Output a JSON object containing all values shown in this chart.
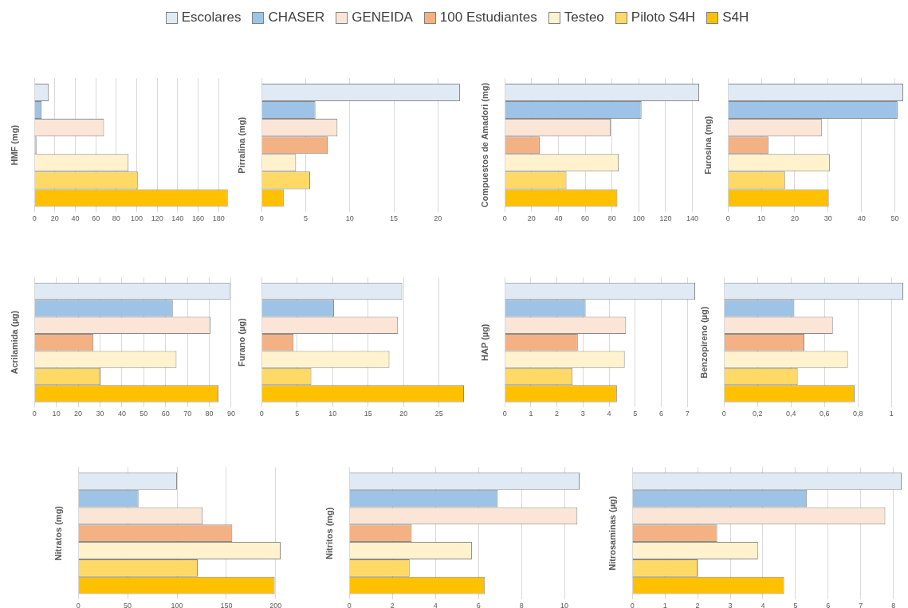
{
  "chart_data": [
    {
      "type": "bar",
      "orientation": "horizontal",
      "ylabel": "HMF (mg)",
      "categories": [
        null
      ],
      "xlim": [
        0,
        190
      ],
      "xticks": [
        0,
        20,
        40,
        60,
        80,
        100,
        120,
        140,
        160,
        180
      ],
      "grid": "x",
      "legend": "top",
      "series": [
        {
          "name": "Escolares",
          "color": "#dfeaf5",
          "values": [
            14
          ]
        },
        {
          "name": "CHASER",
          "color": "#9dc3e6",
          "values": [
            7
          ]
        },
        {
          "name": "GENEIDA",
          "color": "#fbe5d6",
          "values": [
            68
          ]
        },
        {
          "name": "100 Estudiantes",
          "color": "#f4b183",
          "values": [
            2
          ]
        },
        {
          "name": "Testeo",
          "color": "#fff2cc",
          "values": [
            92
          ]
        },
        {
          "name": "Piloto S4H",
          "color": "#ffd966",
          "values": [
            101
          ]
        },
        {
          "name": "S4H",
          "color": "#ffc000",
          "values": [
            189
          ]
        }
      ]
    },
    {
      "type": "bar",
      "orientation": "horizontal",
      "ylabel": "Pirralina (mg)",
      "categories": [
        null
      ],
      "xlim": [
        0,
        22.5
      ],
      "xticks": [
        0,
        5,
        10,
        15,
        20
      ],
      "grid": "x",
      "series": [
        {
          "color": "#dfeaf5",
          "values": [
            22.5
          ]
        },
        {
          "color": "#9dc3e6",
          "values": [
            6.1
          ]
        },
        {
          "color": "#fbe5d6",
          "values": [
            8.6
          ]
        },
        {
          "color": "#f4b183",
          "values": [
            7.5
          ]
        },
        {
          "color": "#fff2cc",
          "values": [
            3.9
          ]
        },
        {
          "color": "#ffd966",
          "values": [
            5.5
          ]
        },
        {
          "color": "#ffc000",
          "values": [
            2.5
          ]
        }
      ]
    },
    {
      "type": "bar",
      "orientation": "horizontal",
      "ylabel": "Compuestos de Amadori (mg)",
      "categories": [
        null
      ],
      "xlim": [
        0,
        145
      ],
      "xticks": [
        0,
        20,
        40,
        60,
        80,
        100,
        120,
        140
      ],
      "grid": "x",
      "series": [
        {
          "color": "#dfeaf5",
          "values": [
            145
          ]
        },
        {
          "color": "#9dc3e6",
          "values": [
            102
          ]
        },
        {
          "color": "#fbe5d6",
          "values": [
            79
          ]
        },
        {
          "color": "#f4b183",
          "values": [
            26
          ]
        },
        {
          "color": "#fff2cc",
          "values": [
            85
          ]
        },
        {
          "color": "#ffd966",
          "values": [
            46
          ]
        },
        {
          "color": "#ffc000",
          "values": [
            84
          ]
        }
      ]
    },
    {
      "type": "bar",
      "orientation": "horizontal",
      "ylabel": "Furosina (mg)",
      "categories": [
        null
      ],
      "xlim": [
        0,
        52.5
      ],
      "xticks": [
        0,
        10,
        20,
        30,
        40,
        50
      ],
      "grid": "x",
      "series": [
        {
          "color": "#dfeaf5",
          "values": [
            52.5
          ]
        },
        {
          "color": "#9dc3e6",
          "values": [
            50.8
          ]
        },
        {
          "color": "#fbe5d6",
          "values": [
            28.1
          ]
        },
        {
          "color": "#f4b183",
          "values": [
            12.1
          ]
        },
        {
          "color": "#fff2cc",
          "values": [
            30.5
          ]
        },
        {
          "color": "#ffd966",
          "values": [
            17.1
          ]
        },
        {
          "color": "#ffc000",
          "values": [
            30.2
          ]
        }
      ]
    },
    {
      "type": "bar",
      "orientation": "horizontal",
      "ylabel": "Acrilamida (µg)",
      "categories": [
        null
      ],
      "xlim": [
        0,
        90
      ],
      "xticks": [
        0,
        10,
        20,
        30,
        40,
        50,
        60,
        70,
        80,
        90
      ],
      "grid": "x",
      "series": [
        {
          "color": "#dfeaf5",
          "values": [
            89.5
          ]
        },
        {
          "color": "#9dc3e6",
          "values": [
            63.3
          ]
        },
        {
          "color": "#fbe5d6",
          "values": [
            80.5
          ]
        },
        {
          "color": "#f4b183",
          "values": [
            27
          ]
        },
        {
          "color": "#fff2cc",
          "values": [
            65
          ]
        },
        {
          "color": "#ffd966",
          "values": [
            30.2
          ]
        },
        {
          "color": "#ffc000",
          "values": [
            84.2
          ]
        }
      ]
    },
    {
      "type": "bar",
      "orientation": "horizontal",
      "ylabel": "Furano (µg)",
      "categories": [
        null
      ],
      "xlim": [
        0,
        28.5
      ],
      "xticks": [
        0,
        5,
        10,
        15,
        20,
        25
      ],
      "grid": "x",
      "series": [
        {
          "color": "#dfeaf5",
          "values": [
            19.8
          ]
        },
        {
          "color": "#9dc3e6",
          "values": [
            10.2
          ]
        },
        {
          "color": "#fbe5d6",
          "values": [
            19.2
          ]
        },
        {
          "color": "#f4b183",
          "values": [
            4.5
          ]
        },
        {
          "color": "#fff2cc",
          "values": [
            18
          ]
        },
        {
          "color": "#ffd966",
          "values": [
            7
          ]
        },
        {
          "color": "#ffc000",
          "values": [
            28.5
          ]
        }
      ]
    },
    {
      "type": "bar",
      "orientation": "horizontal",
      "ylabel": "HAP (µg)",
      "categories": [
        null
      ],
      "xlim": [
        0,
        7.3
      ],
      "xticks": [
        0,
        1,
        2,
        3,
        4,
        5,
        6,
        7
      ],
      "grid": "x",
      "series": [
        {
          "color": "#dfeaf5",
          "values": [
            7.3
          ]
        },
        {
          "color": "#9dc3e6",
          "values": [
            3.1
          ]
        },
        {
          "color": "#fbe5d6",
          "values": [
            4.65
          ]
        },
        {
          "color": "#f4b183",
          "values": [
            2.8
          ]
        },
        {
          "color": "#fff2cc",
          "values": [
            4.6
          ]
        },
        {
          "color": "#ffd966",
          "values": [
            2.6
          ]
        },
        {
          "color": "#ffc000",
          "values": [
            4.3
          ]
        }
      ]
    },
    {
      "type": "bar",
      "orientation": "horizontal",
      "ylabel": "Benzopireno (µg)",
      "categories": [
        null
      ],
      "xlim": [
        0,
        1.07
      ],
      "xticks": [
        0,
        {
          "value": 0.2,
          "label": "0,2"
        },
        {
          "value": 0.4,
          "label": "0,4"
        },
        {
          "value": 0.6,
          "label": "0,6"
        },
        {
          "value": 0.8,
          "label": "0,8"
        },
        1
      ],
      "grid": "x",
      "series": [
        {
          "color": "#dfeaf5",
          "values": [
            1.07
          ]
        },
        {
          "color": "#9dc3e6",
          "values": [
            0.42
          ]
        },
        {
          "color": "#fbe5d6",
          "values": [
            0.65
          ]
        },
        {
          "color": "#f4b183",
          "values": [
            0.48
          ]
        },
        {
          "color": "#fff2cc",
          "values": [
            0.74
          ]
        },
        {
          "color": "#ffd966",
          "values": [
            0.44
          ]
        },
        {
          "color": "#ffc000",
          "values": [
            0.78
          ]
        }
      ]
    },
    {
      "type": "bar",
      "orientation": "horizontal",
      "ylabel": "Nitratos (mg)",
      "categories": [
        null
      ],
      "xlim": [
        0,
        205
      ],
      "xticks": [
        0,
        50,
        100,
        150,
        200
      ],
      "grid": "x",
      "series": [
        {
          "color": "#dfeaf5",
          "values": [
            100
          ]
        },
        {
          "color": "#9dc3e6",
          "values": [
            61
          ]
        },
        {
          "color": "#fbe5d6",
          "values": [
            126
          ]
        },
        {
          "color": "#f4b183",
          "values": [
            156
          ]
        },
        {
          "color": "#fff2cc",
          "values": [
            205
          ]
        },
        {
          "color": "#ffd966",
          "values": [
            121
          ]
        },
        {
          "color": "#ffc000",
          "values": [
            199
          ]
        }
      ]
    },
    {
      "type": "bar",
      "orientation": "horizontal",
      "ylabel": "Nitritos (mg)",
      "categories": [
        null
      ],
      "xlim": [
        0,
        10.7
      ],
      "xticks": [
        0,
        2,
        4,
        6,
        8,
        10
      ],
      "grid": "x",
      "series": [
        {
          "color": "#dfeaf5",
          "values": [
            10.7
          ]
        },
        {
          "color": "#9dc3e6",
          "values": [
            6.9
          ]
        },
        {
          "color": "#fbe5d6",
          "values": [
            10.6
          ]
        },
        {
          "color": "#f4b183",
          "values": [
            2.9
          ]
        },
        {
          "color": "#fff2cc",
          "values": [
            5.7
          ]
        },
        {
          "color": "#ffd966",
          "values": [
            2.8
          ]
        },
        {
          "color": "#ffc000",
          "values": [
            6.3
          ]
        }
      ]
    },
    {
      "type": "bar",
      "orientation": "horizontal",
      "ylabel": "Nitrosaminas (µg)",
      "categories": [
        null
      ],
      "xlim": [
        0,
        8.3
      ],
      "xticks": [
        0,
        1,
        2,
        3,
        4,
        5,
        6,
        7,
        8
      ],
      "grid": "x",
      "series": [
        {
          "color": "#dfeaf5",
          "values": [
            8.25
          ]
        },
        {
          "color": "#9dc3e6",
          "values": [
            5.35
          ]
        },
        {
          "color": "#fbe5d6",
          "values": [
            7.75
          ]
        },
        {
          "color": "#f4b183",
          "values": [
            2.6
          ]
        },
        {
          "color": "#fff2cc",
          "values": [
            3.85
          ]
        },
        {
          "color": "#ffd966",
          "values": [
            2.0
          ]
        },
        {
          "color": "#ffc000",
          "values": [
            4.65
          ]
        }
      ]
    }
  ]
}
